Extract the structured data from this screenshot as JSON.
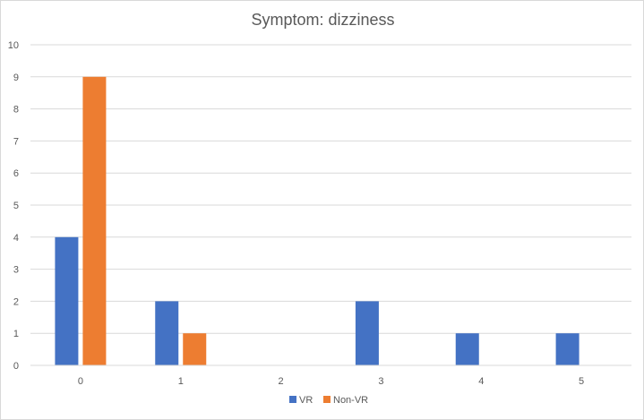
{
  "chart_data": {
    "type": "bar",
    "title": "Symptom: dizziness",
    "xlabel": "",
    "ylabel": "",
    "categories": [
      "0",
      "1",
      "2",
      "3",
      "4",
      "5"
    ],
    "series": [
      {
        "name": "VR",
        "values": [
          4,
          2,
          0,
          2,
          1,
          1
        ],
        "color": "#4472c4"
      },
      {
        "name": "Non-VR",
        "values": [
          9,
          1,
          0,
          0,
          0,
          0
        ],
        "color": "#ed7d31"
      }
    ],
    "ylim": [
      0,
      10
    ],
    "yticks": [
      "0",
      "1",
      "2",
      "3",
      "4",
      "5",
      "6",
      "7",
      "8",
      "9",
      "10"
    ],
    "grid": true,
    "legend_position": "bottom"
  }
}
